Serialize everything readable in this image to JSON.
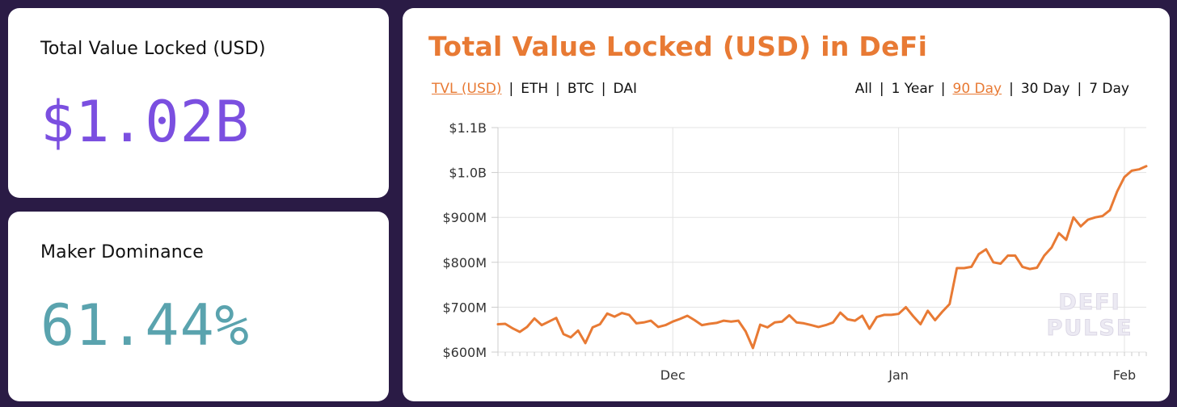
{
  "tvl_card": {
    "label": "Total Value Locked (USD)",
    "value": "$1.02B"
  },
  "maker_card": {
    "label": "Maker Dominance",
    "value": "61.44%"
  },
  "chart_card": {
    "title": "Total Value Locked (USD) in DeFi",
    "currency_tabs": [
      {
        "label": "TVL (USD)",
        "active": true
      },
      {
        "label": "ETH",
        "active": false
      },
      {
        "label": "BTC",
        "active": false
      },
      {
        "label": "DAI",
        "active": false
      }
    ],
    "range_tabs": [
      {
        "label": "All",
        "active": false
      },
      {
        "label": "1 Year",
        "active": false
      },
      {
        "label": "90 Day",
        "active": true
      },
      {
        "label": "30 Day",
        "active": false
      },
      {
        "label": "7 Day",
        "active": false
      }
    ],
    "separator": "|",
    "watermark": [
      "DEFI",
      "PULSE"
    ]
  },
  "colors": {
    "background": "#2a1b45",
    "accent_orange": "#e87a34",
    "tvl_purple": "#7b4fe0",
    "maker_teal": "#5aa3ae"
  },
  "chart_data": {
    "type": "line",
    "title": "Total Value Locked (USD) in DeFi",
    "xlabel": "",
    "ylabel": "",
    "y_unit": "USD (millions)",
    "ylim": [
      600,
      1100
    ],
    "yticks": [
      600,
      700,
      800,
      900,
      1000,
      1100
    ],
    "ytick_labels": [
      "$600M",
      "$700M",
      "$800M",
      "$900M",
      "$1.0B",
      "$1.1B"
    ],
    "x_tick_labels": [
      "Dec",
      "Jan",
      "Feb"
    ],
    "x_tick_days": [
      24,
      55,
      86
    ],
    "grid": true,
    "series": [
      {
        "name": "",
        "color": "#e87a34",
        "values": [
          662,
          663,
          653,
          645,
          656,
          675,
          660,
          668,
          676,
          640,
          633,
          648,
          620,
          655,
          662,
          686,
          679,
          687,
          683,
          664,
          666,
          670,
          656,
          660,
          668,
          674,
          681,
          671,
          660,
          663,
          665,
          670,
          668,
          670,
          646,
          609,
          661,
          655,
          666,
          668,
          682,
          666,
          664,
          660,
          656,
          660,
          666,
          688,
          673,
          670,
          681,
          652,
          678,
          683,
          683,
          685,
          700,
          680,
          662,
          692,
          671,
          690,
          707,
          787,
          787,
          790,
          818,
          829,
          800,
          797,
          815,
          815,
          790,
          785,
          788,
          815,
          833,
          865,
          850,
          900,
          880,
          895,
          900,
          903,
          916,
          958,
          990,
          1004,
          1007,
          1014
        ]
      }
    ]
  }
}
